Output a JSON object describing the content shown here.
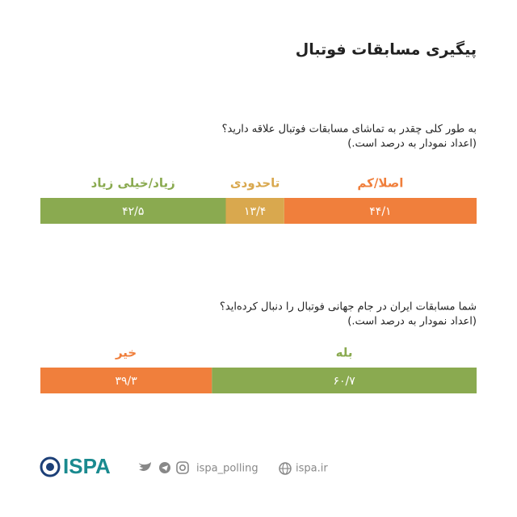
{
  "header": {
    "title": "پیگیری مسابقات فوتبال"
  },
  "chart_data": [
    {
      "type": "stacked-bar",
      "title": "به طور کلی چقدر به تماشای مسابقات فوتبال علاقه دارید؟",
      "subtitle": "(اعداد نمودار به درصد است.)",
      "xlim": [
        0,
        100
      ],
      "series": [
        {
          "name": "اصلا/کم",
          "color": "#f07f3c",
          "values": [
            44.1
          ],
          "value_labels": [
            "۴۴/۱"
          ]
        },
        {
          "name": "تاحدودی",
          "color": "#d9a84e",
          "values": [
            13.4
          ],
          "value_labels": [
            "۱۳/۴"
          ]
        },
        {
          "name": "زیاد/خیلی زیاد",
          "color": "#8aaa50",
          "values": [
            42.5
          ],
          "value_labels": [
            "۴۲/۵"
          ]
        }
      ]
    },
    {
      "type": "stacked-bar",
      "title": "شما مسابقات ایران در جام جهانی فوتبال را دنبال کرده‌اید؟",
      "subtitle": "(اعداد نمودار به درصد است.)",
      "xlim": [
        0,
        100
      ],
      "series": [
        {
          "name": "بله",
          "color": "#8aaa50",
          "values": [
            60.7
          ],
          "value_labels": [
            "۶۰/۷"
          ]
        },
        {
          "name": "خیر",
          "color": "#f07f3c",
          "values": [
            39.3
          ],
          "value_labels": [
            "۳۹/۳"
          ]
        }
      ]
    }
  ],
  "footer": {
    "brand": "ISPA",
    "social": "ispa_polling",
    "website": "ispa.ir"
  }
}
